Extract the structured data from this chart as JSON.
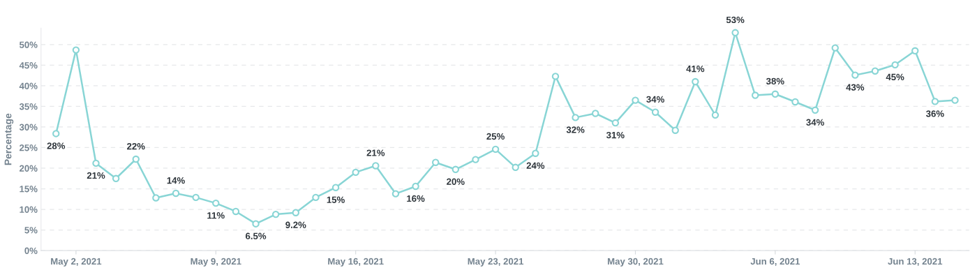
{
  "chart_data": {
    "type": "line",
    "ylabel": "Percentage",
    "x": [
      "2021-05-01",
      "2021-05-02",
      "2021-05-03",
      "2021-05-04",
      "2021-05-05",
      "2021-05-06",
      "2021-05-07",
      "2021-05-08",
      "2021-05-09",
      "2021-05-10",
      "2021-05-11",
      "2021-05-12",
      "2021-05-13",
      "2021-05-14",
      "2021-05-15",
      "2021-05-16",
      "2021-05-17",
      "2021-05-18",
      "2021-05-19",
      "2021-05-20",
      "2021-05-21",
      "2021-05-22",
      "2021-05-23",
      "2021-05-24",
      "2021-05-25",
      "2021-05-26",
      "2021-05-27",
      "2021-05-28",
      "2021-05-29",
      "2021-05-30",
      "2021-05-31",
      "2021-06-01",
      "2021-06-02",
      "2021-06-03",
      "2021-06-04",
      "2021-06-05",
      "2021-06-06",
      "2021-06-07",
      "2021-06-08",
      "2021-06-09",
      "2021-06-10",
      "2021-06-11",
      "2021-06-12",
      "2021-06-13",
      "2021-06-14",
      "2021-06-15"
    ],
    "series": [
      {
        "color": "#88d5d5",
        "values": [
          28.4,
          48.7,
          21.2,
          17.5,
          22.2,
          12.8,
          13.9,
          12.9,
          11.5,
          9.5,
          6.5,
          8.8,
          9.2,
          12.9,
          15.3,
          19.0,
          20.6,
          13.8,
          15.6,
          21.4,
          19.7,
          22.1,
          24.6,
          20.2,
          23.6,
          42.3,
          32.3,
          33.3,
          31.0,
          36.5,
          33.6,
          29.2,
          41.0,
          32.9,
          52.9,
          37.7,
          38.0,
          36.1,
          34.1,
          49.2,
          42.6,
          43.6,
          45.1,
          48.5,
          36.2,
          36.5
        ],
        "value_labels": [
          "28%",
          null,
          "21%",
          null,
          "22%",
          null,
          "14%",
          null,
          "11%",
          null,
          "6.5%",
          null,
          "9.2%",
          null,
          "15%",
          null,
          "21%",
          null,
          "16%",
          null,
          "20%",
          null,
          "25%",
          null,
          "24%",
          null,
          "32%",
          null,
          "31%",
          null,
          "34%",
          null,
          "41%",
          null,
          "53%",
          null,
          "38%",
          null,
          "34%",
          null,
          "43%",
          null,
          "45%",
          null,
          "36%",
          null
        ]
      }
    ],
    "yticks": [
      {
        "value": 0,
        "label": "0%"
      },
      {
        "value": 5,
        "label": "5%"
      },
      {
        "value": 10,
        "label": "10%"
      },
      {
        "value": 15,
        "label": "15%"
      },
      {
        "value": 20,
        "label": "20%"
      },
      {
        "value": 25,
        "label": "25%"
      },
      {
        "value": 30,
        "label": "30%"
      },
      {
        "value": 35,
        "label": "35%"
      },
      {
        "value": 40,
        "label": "40%"
      },
      {
        "value": 45,
        "label": "45%"
      },
      {
        "value": 50,
        "label": "50%"
      }
    ],
    "ylim": [
      0,
      54
    ],
    "xlim": [
      "2021-04-30T06:00",
      "2021-06-15T17:00"
    ],
    "xticks": [
      {
        "value": "2021-05-02",
        "label": "May 2, 2021"
      },
      {
        "value": "2021-05-09",
        "label": "May 9, 2021"
      },
      {
        "value": "2021-05-16",
        "label": "May 16, 2021"
      },
      {
        "value": "2021-05-23",
        "label": "May 23, 2021"
      },
      {
        "value": "2021-05-30",
        "label": "May 30, 2021"
      },
      {
        "value": "2021-06-06",
        "label": "Jun 6, 2021"
      },
      {
        "value": "2021-06-13",
        "label": "Jun 13, 2021"
      }
    ],
    "grid": "y",
    "marker": "circle",
    "line_style": "solid",
    "legend": false
  }
}
